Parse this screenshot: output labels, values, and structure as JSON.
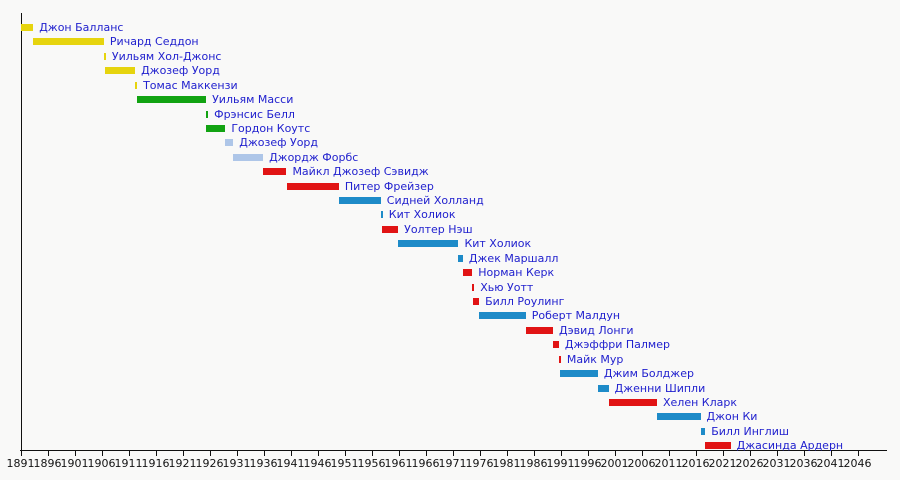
{
  "chart_data": {
    "type": "bar",
    "subtype": "timeline-gantt",
    "title": "",
    "xlabel": "",
    "ylabel": "",
    "x_axis": {
      "start": 1891,
      "end": 2046,
      "tick_interval": 5,
      "ticks": [
        1891,
        1896,
        1901,
        1906,
        1911,
        1916,
        1921,
        1926,
        1931,
        1936,
        1941,
        1946,
        1951,
        1956,
        1961,
        1966,
        1971,
        1976,
        1981,
        1986,
        1991,
        1996,
        2001,
        2006,
        2011,
        2016,
        2021,
        2026,
        2031,
        2036,
        2041,
        2046
      ],
      "grid": false
    },
    "colors": {
      "yellow": "#e6d40e",
      "green": "#12a312",
      "lightblue": "#aec6e8",
      "red": "#e11414",
      "blue": "#1e8bc8",
      "label_text": "#2121ce",
      "axis": "#101010",
      "background": "#f9f9f8"
    },
    "terms": [
      {
        "name": "Джон Балланс",
        "color": "yellow",
        "start": 1891.0,
        "end": 1893.35
      },
      {
        "name": "Ричард Седдон",
        "color": "yellow",
        "start": 1893.35,
        "end": 1906.45
      },
      {
        "name": "Уильям Хол-Джонс",
        "color": "yellow",
        "start": 1906.45,
        "end": 1906.62
      },
      {
        "name": "Джозеф Уорд",
        "color": "yellow",
        "start": 1906.62,
        "end": 1912.22
      },
      {
        "name": "Томас Маккензи",
        "color": "yellow",
        "start": 1912.22,
        "end": 1912.52
      },
      {
        "name": "Уильям Масси",
        "color": "green",
        "start": 1912.52,
        "end": 1925.37
      },
      {
        "name": "Фрэнсис Белл",
        "color": "green",
        "start": 1925.37,
        "end": 1925.42
      },
      {
        "name": "Гордон Коутс",
        "color": "green",
        "start": 1925.42,
        "end": 1928.93
      },
      {
        "name": "Джозеф Уорд",
        "color": "lightblue",
        "start": 1928.93,
        "end": 1930.4
      },
      {
        "name": "Джордж Форбс",
        "color": "lightblue",
        "start": 1930.4,
        "end": 1935.92
      },
      {
        "name": "Майкл Джозеф Сэвидж",
        "color": "red",
        "start": 1935.92,
        "end": 1940.25
      },
      {
        "name": "Питер Фрейзер",
        "color": "red",
        "start": 1940.27,
        "end": 1949.95
      },
      {
        "name": "Сидней Холланд",
        "color": "blue",
        "start": 1949.95,
        "end": 1957.72
      },
      {
        "name": "Кит Холиок",
        "color": "blue",
        "start": 1957.72,
        "end": 1957.92
      },
      {
        "name": "Уолтер Нэш",
        "color": "red",
        "start": 1957.92,
        "end": 1960.93
      },
      {
        "name": "Кит Холиок",
        "color": "blue",
        "start": 1960.93,
        "end": 1972.1
      },
      {
        "name": "Джек Маршалл",
        "color": "blue",
        "start": 1972.1,
        "end": 1972.93
      },
      {
        "name": "Норман Керк",
        "color": "red",
        "start": 1972.93,
        "end": 1974.66
      },
      {
        "name": "Хью Уотт",
        "color": "red",
        "start": 1974.66,
        "end": 1974.72
      },
      {
        "name": "Билл Роулинг",
        "color": "red",
        "start": 1974.72,
        "end": 1975.93
      },
      {
        "name": "Роберт Малдун",
        "color": "blue",
        "start": 1975.93,
        "end": 1984.56
      },
      {
        "name": "Дэвид Лонги",
        "color": "red",
        "start": 1984.56,
        "end": 1989.62
      },
      {
        "name": "Джэффри Палмер",
        "color": "red",
        "start": 1989.62,
        "end": 1990.7
      },
      {
        "name": "Майк Мур",
        "color": "red",
        "start": 1990.7,
        "end": 1990.87
      },
      {
        "name": "Джим Болджер",
        "color": "blue",
        "start": 1990.87,
        "end": 1997.93
      },
      {
        "name": "Дженни Шипли",
        "color": "blue",
        "start": 1997.93,
        "end": 1999.92
      },
      {
        "name": "Хелен Кларк",
        "color": "red",
        "start": 1999.92,
        "end": 2008.87
      },
      {
        "name": "Джон Ки",
        "color": "blue",
        "start": 2008.87,
        "end": 2016.93
      },
      {
        "name": "Билл Инглиш",
        "color": "blue",
        "start": 2016.93,
        "end": 2017.8
      },
      {
        "name": "Джасинда Ардерн",
        "color": "red",
        "start": 2017.8,
        "end": 2022.5
      }
    ]
  }
}
